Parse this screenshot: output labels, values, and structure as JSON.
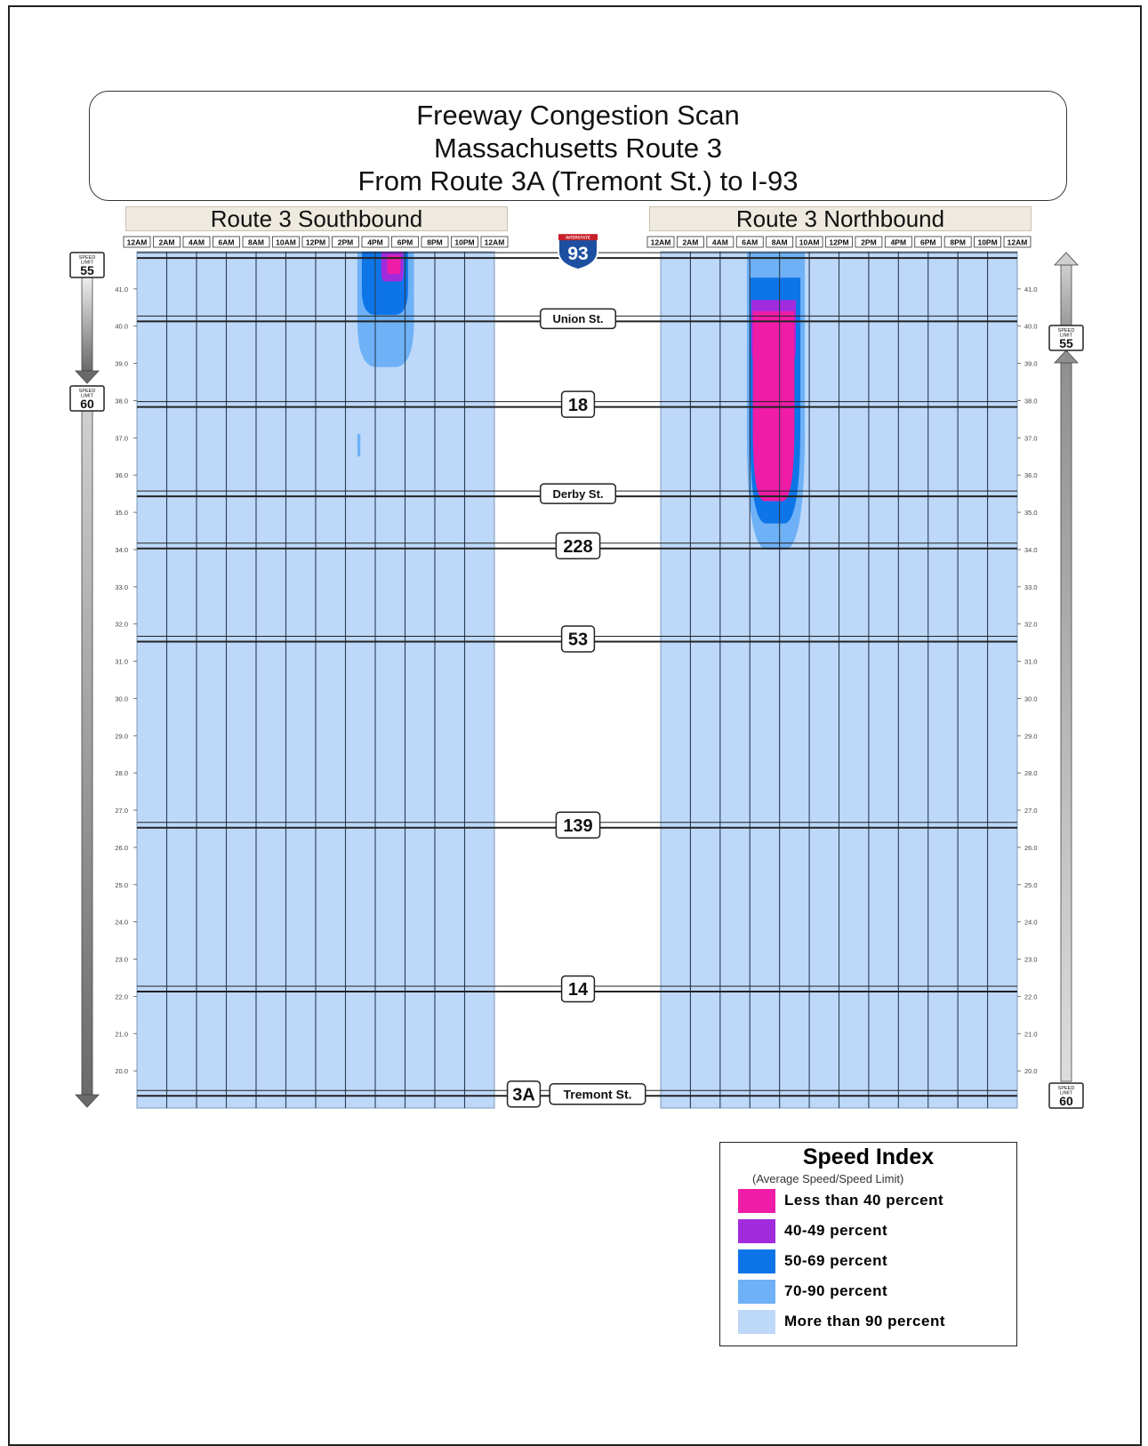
{
  "title": {
    "line1": "Freeway Congestion Scan",
    "line2": "Massachusetts Route 3",
    "line3": "From Route 3A (Tremont St.) to I-93"
  },
  "panels": {
    "southbound": "Route 3 Southbound",
    "northbound": "Route 3 Northbound"
  },
  "time_labels": [
    "12AM",
    "2AM",
    "4AM",
    "6AM",
    "8AM",
    "10AM",
    "12PM",
    "2PM",
    "4PM",
    "6PM",
    "8PM",
    "10PM",
    "12AM"
  ],
  "speed_signs": {
    "header": "SPEED",
    "subheader": "LIMIT",
    "left_top": "55",
    "left_mid": "60",
    "right_mid": "55",
    "right_bottom": "60"
  },
  "route_markers": {
    "interstate_banner": "INTERSTATE",
    "i93": "93",
    "union": "Union St.",
    "r18": "18",
    "derby": "Derby St.",
    "r228": "228",
    "r53": "53",
    "r139": "139",
    "r14": "14",
    "r3a": "3A",
    "tremont": "Tremont St."
  },
  "legend": {
    "title": "Speed Index",
    "subtitle": "(Average Speed/Speed Limit)",
    "items": [
      {
        "label": "Less than 40 percent",
        "color": "#ee1ca6"
      },
      {
        "label": "40-49 percent",
        "color": "#a22bdd"
      },
      {
        "label": "50-69 percent",
        "color": "#0d75e8"
      },
      {
        "label": "70-90 percent",
        "color": "#6eb1f6"
      },
      {
        "label": "More than 90 percent",
        "color": "#bdd8f9"
      }
    ]
  },
  "chart_data": {
    "type": "heatmap",
    "x_unit": "hour of day",
    "xlim": [
      0,
      24
    ],
    "y_unit": "milepost",
    "ylim": [
      19.0,
      42.0
    ],
    "y_ticks": [
      20.0,
      21.0,
      22.0,
      23.0,
      24.0,
      25.0,
      26.0,
      27.0,
      28.0,
      29.0,
      30.0,
      31.0,
      32.0,
      33.0,
      34.0,
      35.0,
      36.0,
      37.0,
      38.0,
      39.0,
      40.0,
      41.0
    ],
    "y_tick_labels": [
      "20.0",
      "21.0",
      "22.0",
      "23.0",
      "24.0",
      "25.0",
      "26.0",
      "27.0",
      "28.0",
      "29.0",
      "30.0",
      "31.0",
      "32.0",
      "33.0",
      "34.0",
      "35.0",
      "36.0",
      "37.0",
      "38.0",
      "39.0",
      "40.0",
      "41.0"
    ],
    "background_category": "More than 90 percent",
    "interchange_mileposts": {
      "i93": 41.9,
      "union": 40.2,
      "r18": 37.9,
      "derby": 35.5,
      "r228": 34.1,
      "r53": 31.6,
      "r139": 26.6,
      "r14": 22.2,
      "r3a": 19.4
    },
    "southbound": {
      "congestion": [
        {
          "category": "70-90 percent",
          "t0": 14.8,
          "t1": 18.6,
          "m_top": 42.0,
          "m_bottom": 38.9
        },
        {
          "category": "50-69 percent",
          "t0": 15.1,
          "t1": 18.2,
          "m_top": 42.0,
          "m_bottom": 40.3
        },
        {
          "category": "40-49 percent",
          "t0": 16.4,
          "t1": 17.9,
          "m_top": 42.0,
          "m_bottom": 41.2
        },
        {
          "category": "Less than 40 percent",
          "t0": 16.8,
          "t1": 17.7,
          "m_top": 41.9,
          "m_bottom": 41.4
        },
        {
          "category": "70-90 percent",
          "t0": 14.8,
          "t1": 15.0,
          "m_top": 37.1,
          "m_bottom": 36.5
        }
      ]
    },
    "northbound": {
      "congestion": [
        {
          "category": "70-90 percent",
          "t0": 5.8,
          "t1": 9.7,
          "m_top": 42.0,
          "m_bottom": 34.0
        },
        {
          "category": "50-69 percent",
          "t0": 6.0,
          "t1": 9.4,
          "m_top": 41.3,
          "m_bottom": 34.7
        },
        {
          "category": "40-49 percent",
          "t0": 6.1,
          "t1": 9.1,
          "m_top": 40.7,
          "m_bottom": 38.7
        },
        {
          "category": "Less than 40 percent",
          "t0": 6.2,
          "t1": 9.0,
          "m_top": 40.4,
          "m_bottom": 35.3
        }
      ]
    }
  }
}
